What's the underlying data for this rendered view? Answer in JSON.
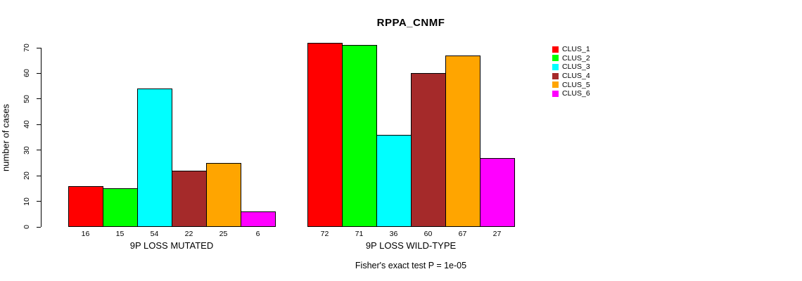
{
  "figure": {
    "title": "RPPA_CNMF",
    "annotation": "Fisher's exact test P = 1e-05",
    "y_axis_label": "number of cases"
  },
  "chart_data": {
    "type": "bar",
    "title": "RPPA_CNMF",
    "xlabel": "",
    "ylabel": "number of cases",
    "ylim": [
      0,
      70
    ],
    "y_ticks": [
      0,
      10,
      20,
      30,
      40,
      50,
      60,
      70
    ],
    "grid": false,
    "legend_position": "right",
    "annotation": "Fisher's exact test P = 1e-05",
    "categories": [
      "9P LOSS MUTATED",
      "9P LOSS WILD-TYPE"
    ],
    "series": [
      {
        "name": "CLUS_1",
        "color": "#FF0000",
        "values": [
          16,
          72
        ]
      },
      {
        "name": "CLUS_2",
        "color": "#00FF00",
        "values": [
          15,
          71
        ]
      },
      {
        "name": "CLUS_3",
        "color": "#00FFFF",
        "values": [
          54,
          36
        ]
      },
      {
        "name": "CLUS_4",
        "color": "#A52A2A",
        "values": [
          22,
          60
        ]
      },
      {
        "name": "CLUS_5",
        "color": "#FFA500",
        "values": [
          25,
          67
        ]
      },
      {
        "name": "CLUS_6",
        "color": "#FF00FF",
        "values": [
          6,
          27
        ]
      }
    ],
    "bar_labels": [
      [
        16,
        15,
        54,
        22,
        25,
        6
      ],
      [
        72,
        71,
        36,
        60,
        67,
        27
      ]
    ]
  }
}
